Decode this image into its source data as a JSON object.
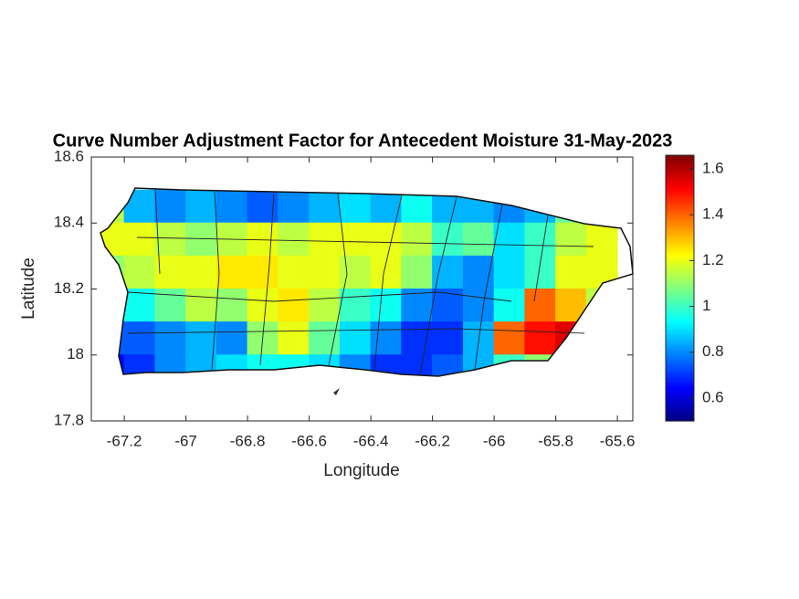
{
  "chart_data": {
    "type": "heatmap",
    "title": "Curve Number Adjustment Factor for Antecedent Moisture 31-May-2023",
    "x_label": "Longitude",
    "y_label": "Latitude",
    "xlim": [
      -67.307,
      -65.55
    ],
    "ylim": [
      17.8,
      18.6
    ],
    "xticks": [
      -67.2,
      -67,
      -66.8,
      -66.6,
      -66.4,
      -66.2,
      -66,
      -65.8,
      -65.6
    ],
    "yticks": [
      17.8,
      18,
      18.2,
      18.4,
      18.6
    ],
    "x": [
      -67.25,
      -67.15,
      -67.05,
      -66.95,
      -66.85,
      -66.75,
      -66.65,
      -66.55,
      -66.45,
      -66.35,
      -66.25,
      -66.15,
      -66.05,
      -65.95,
      -65.85,
      -65.75,
      -65.65
    ],
    "y": [
      18.45,
      18.35,
      18.25,
      18.15,
      18.05,
      17.95
    ],
    "values": [
      [
        1.15,
        0.85,
        0.8,
        0.85,
        0.8,
        0.75,
        0.8,
        0.85,
        0.9,
        0.85,
        0.95,
        0.85,
        0.85,
        0.8,
        0.85,
        1.05,
        1.15
      ],
      [
        1.2,
        1.2,
        1.15,
        1.1,
        1.15,
        1.2,
        1.15,
        1.2,
        1.2,
        1.2,
        1.15,
        1.0,
        1.05,
        0.9,
        1.0,
        1.15,
        1.2
      ],
      [
        1.1,
        1.15,
        1.2,
        1.2,
        1.25,
        1.25,
        1.2,
        1.2,
        1.15,
        1.2,
        1.1,
        0.85,
        0.8,
        0.9,
        1.0,
        1.2,
        1.2
      ],
      [
        0.9,
        0.95,
        1.05,
        1.15,
        1.1,
        1.2,
        1.25,
        1.15,
        1.0,
        0.95,
        0.8,
        0.75,
        0.8,
        0.95,
        1.4,
        1.3,
        1.15
      ],
      [
        0.75,
        0.75,
        0.8,
        0.85,
        0.8,
        1.1,
        1.2,
        1.05,
        0.9,
        0.8,
        0.7,
        0.7,
        0.85,
        1.4,
        1.5,
        1.55,
        null
      ],
      [
        0.65,
        0.7,
        0.8,
        0.85,
        0.9,
        0.95,
        0.95,
        0.9,
        0.8,
        0.7,
        0.7,
        0.75,
        0.85,
        1.0,
        1.1,
        null,
        null
      ]
    ],
    "colormap": "jet",
    "clim": [
      0.5,
      1.66
    ],
    "colorbar_ticks": [
      0.6,
      0.8,
      1,
      1.2,
      1.4,
      1.6
    ]
  }
}
